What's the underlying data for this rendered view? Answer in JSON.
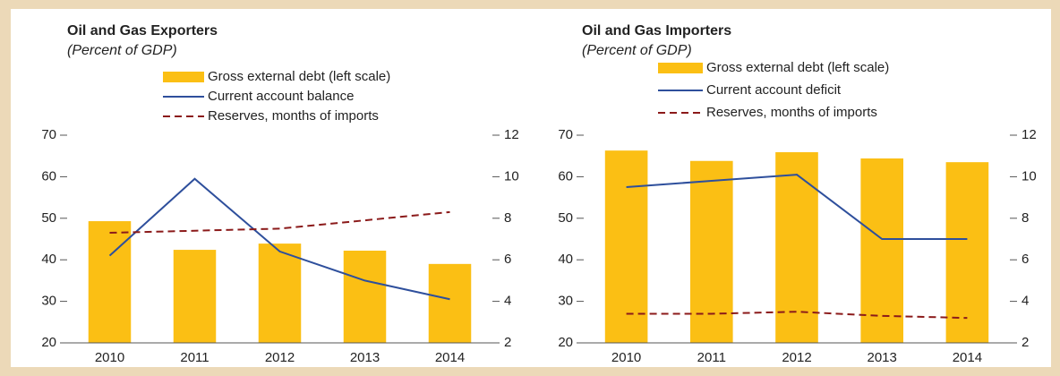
{
  "chart_data": [
    {
      "type": "combo",
      "title": "Oil and Gas Exporters",
      "subtitle": "(Percent of GDP)",
      "categories": [
        "2010",
        "2011",
        "2012",
        "2013",
        "2014"
      ],
      "ylim": [
        20,
        70
      ],
      "yticks": [
        20,
        30,
        40,
        50,
        60,
        70
      ],
      "y2lim": [
        2,
        12
      ],
      "y2ticks": [
        2,
        4,
        6,
        8,
        10,
        12
      ],
      "series": [
        {
          "name": "Gross external debt (left scale)",
          "type": "bar",
          "color": "#fbbf14",
          "values": [
            49.3,
            42.4,
            43.9,
            42.2,
            39.0
          ]
        },
        {
          "name": "Current account balance",
          "type": "line",
          "axis": "y2",
          "color": "#2e4f9c",
          "values": [
            6.2,
            9.9,
            6.4,
            5.0,
            4.1
          ]
        },
        {
          "name": "Reserves, months of imports",
          "type": "line",
          "axis": "y2",
          "dashed": true,
          "color": "#8b1a1a",
          "values": [
            7.3,
            7.4,
            7.5,
            7.9,
            8.3
          ]
        }
      ]
    },
    {
      "type": "combo",
      "title": "Oil and Gas Importers",
      "subtitle": "(Percent of GDP)",
      "categories": [
        "2010",
        "2011",
        "2012",
        "2013",
        "2014"
      ],
      "ylim": [
        20,
        70
      ],
      "yticks": [
        20,
        30,
        40,
        50,
        60,
        70
      ],
      "y2lim": [
        2,
        12
      ],
      "y2ticks": [
        2,
        4,
        6,
        8,
        10,
        12
      ],
      "series": [
        {
          "name": "Gross external debt (left scale)",
          "type": "bar",
          "color": "#fbbf14",
          "values": [
            66.3,
            63.8,
            65.9,
            64.4,
            63.5
          ]
        },
        {
          "name": "Current account deficit",
          "type": "line",
          "axis": "y2",
          "color": "#2e4f9c",
          "values": [
            9.5,
            9.8,
            10.1,
            7.0,
            7.0
          ]
        },
        {
          "name": "Reserves, months of imports",
          "type": "line",
          "axis": "y2",
          "dashed": true,
          "color": "#8b1a1a",
          "values": [
            3.4,
            3.4,
            3.5,
            3.3,
            3.2
          ]
        }
      ]
    }
  ]
}
